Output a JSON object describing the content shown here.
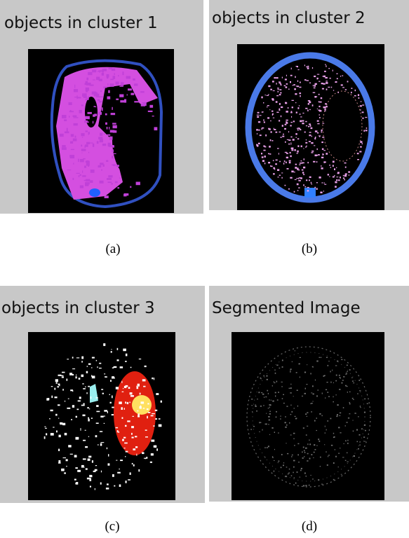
{
  "panels": [
    {
      "title": "objects in cluster 1",
      "caption": "(a)"
    },
    {
      "title": "objects in cluster 2",
      "caption": "(b)"
    },
    {
      "title": "objects in cluster 3",
      "caption": "(c)"
    },
    {
      "title": "Segmented Image",
      "caption": "(d)"
    }
  ]
}
